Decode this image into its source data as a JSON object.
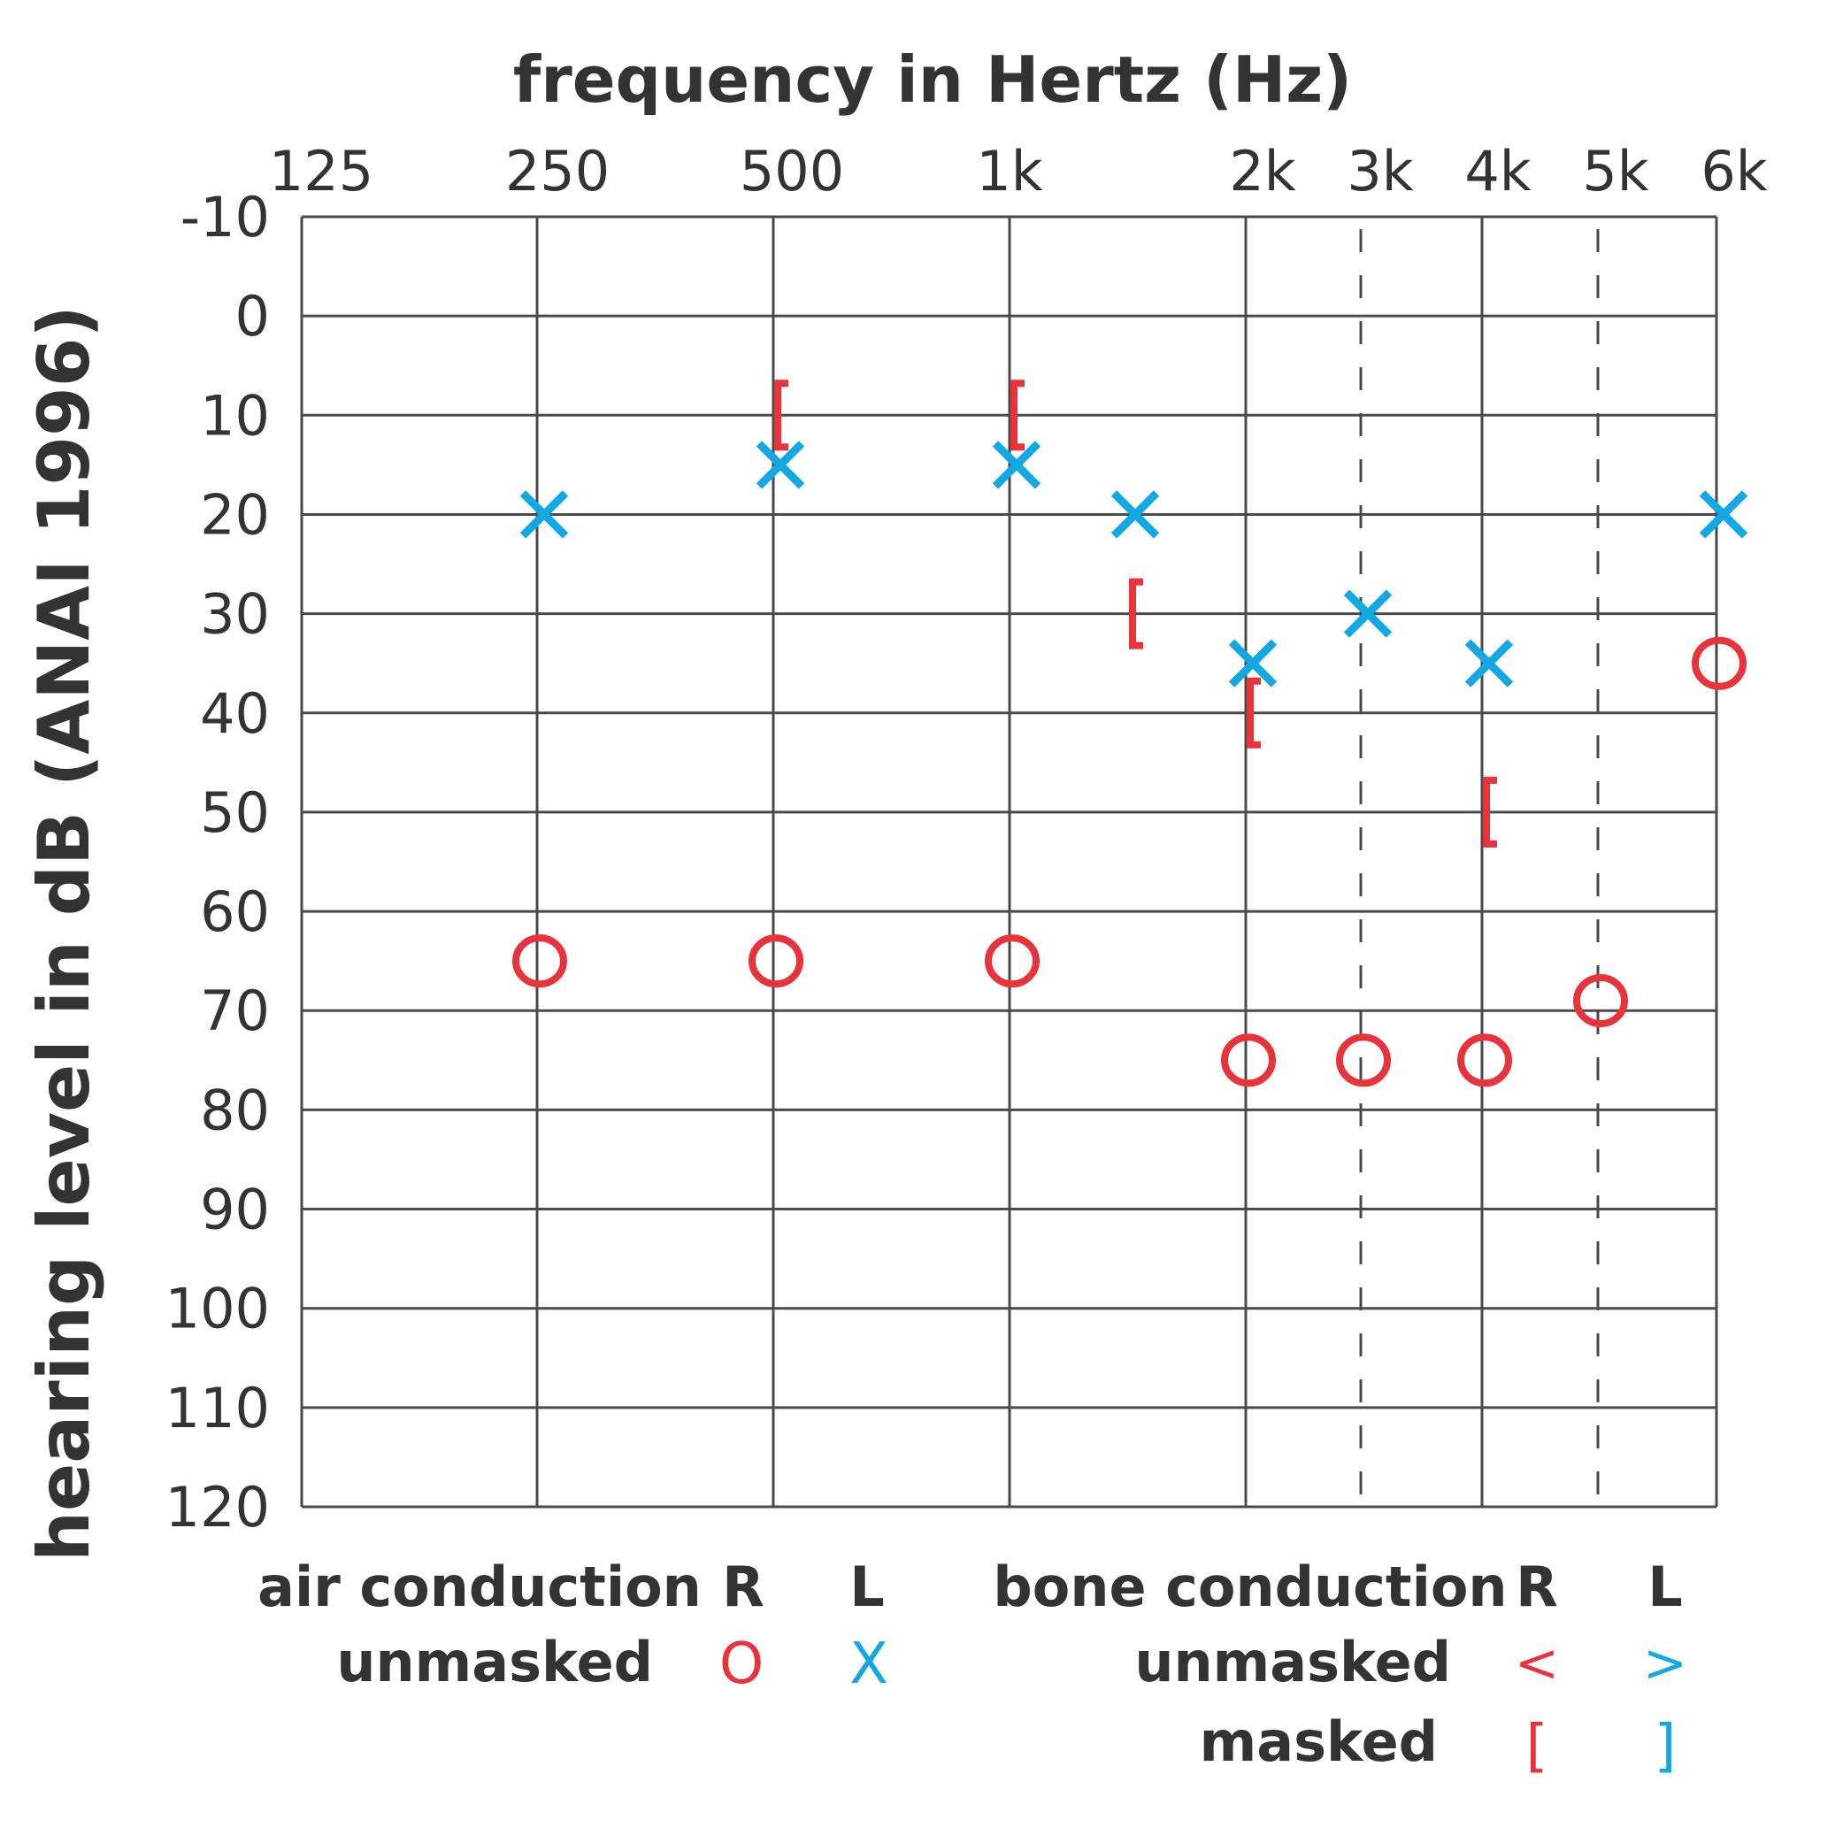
{
  "chart_data": {
    "type": "scatter",
    "title": "frequency in Hertz (Hz)",
    "ylabel": "hearing level in dB (ANAI 1996)",
    "xlabel": "",
    "x_ticks": [
      "125",
      "250",
      "500",
      "1k",
      "2k",
      "3k",
      "4k",
      "5k",
      "6k"
    ],
    "y_ticks": [
      "-10",
      "0",
      "10",
      "20",
      "30",
      "40",
      "50",
      "60",
      "70",
      "80",
      "90",
      "100",
      "110",
      "120"
    ],
    "ylim": [
      -10,
      120
    ],
    "y_inverted": true,
    "grid": true,
    "dashed_columns": [
      "3k",
      "5k"
    ],
    "series": [
      {
        "name": "air conduction unmasked R",
        "marker": "O",
        "color": "#e8333b",
        "points": [
          {
            "x": "250",
            "y": 65
          },
          {
            "x": "500",
            "y": 65
          },
          {
            "x": "1k",
            "y": 65
          },
          {
            "x": "2k",
            "y": 75
          },
          {
            "x": "3k",
            "y": 75
          },
          {
            "x": "4k",
            "y": 75
          },
          {
            "x": "5k",
            "y": 69
          },
          {
            "x": "6k",
            "y": 35
          }
        ]
      },
      {
        "name": "air conduction unmasked L",
        "marker": "X",
        "color": "#12a8e4",
        "points": [
          {
            "x": "250",
            "y": 20
          },
          {
            "x": "500",
            "y": 15
          },
          {
            "x": "1k",
            "y": 15
          },
          {
            "x": "1.5k",
            "y": 20
          },
          {
            "x": "2k",
            "y": 35
          },
          {
            "x": "3k",
            "y": 30
          },
          {
            "x": "4k",
            "y": 35
          },
          {
            "x": "6k",
            "y": 20
          }
        ]
      },
      {
        "name": "bone conduction masked R",
        "marker": "[",
        "color": "#e8333b",
        "points": [
          {
            "x": "500",
            "y": 10
          },
          {
            "x": "1k",
            "y": 10
          },
          {
            "x": "1.5k",
            "y": 30
          },
          {
            "x": "2k",
            "y": 40
          },
          {
            "x": "4k",
            "y": 50
          }
        ]
      }
    ],
    "legend": {
      "placement": "bottom",
      "air_label": "air conduction",
      "bone_label": "bone conduction",
      "r_label": "R",
      "l_label": "L",
      "unmasked_label": "unmasked",
      "masked_label": "masked",
      "air_unmasked_r": "O",
      "air_unmasked_l": "X",
      "bone_unmasked_r": "<",
      "bone_unmasked_l": ">",
      "bone_masked_r": "[",
      "bone_masked_l": "]"
    }
  },
  "colors": {
    "red": "#e8333b",
    "blue": "#12a8e4",
    "grid": "#4a4a4a",
    "text": "#333333"
  }
}
